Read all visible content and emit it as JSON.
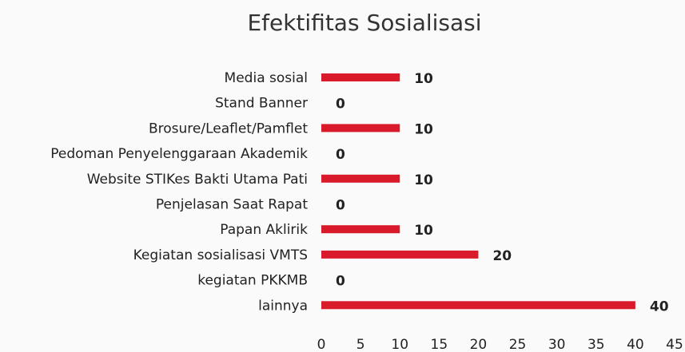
{
  "chart_data": {
    "type": "bar",
    "orientation": "horizontal",
    "title": "Efektifitas Sosialisasi",
    "categories": [
      "Media sosial",
      "Stand Banner",
      "Brosure/Leaflet/Pamflet",
      "Pedoman Penyelenggaraan Akademik",
      "Website STIKes Bakti Utama Pati",
      "Penjelasan Saat Rapat",
      "Papan Aklirik",
      "Kegiatan sosialisasi VMTS",
      "kegiatan PKKMB",
      "lainnya"
    ],
    "values": [
      10,
      0,
      10,
      0,
      10,
      0,
      10,
      20,
      0,
      40
    ],
    "color": "#d91a2a",
    "xlim": [
      0,
      45
    ],
    "xticks": [
      0,
      5,
      10,
      15,
      20,
      25,
      30,
      35,
      40,
      45
    ],
    "grid": false
  }
}
